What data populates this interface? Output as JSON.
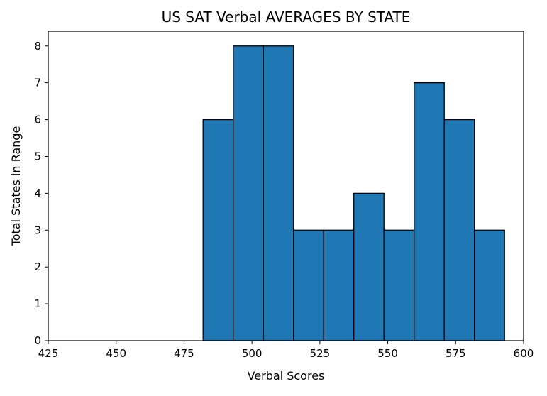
{
  "chart_data": {
    "type": "bar",
    "subtype": "histogram",
    "title": "US SAT Verbal AVERAGES BY STATE",
    "xlabel": "Verbal Scores",
    "ylabel": "Total States in Range",
    "xlim": [
      425,
      600
    ],
    "ylim": [
      0,
      8.4
    ],
    "xticks": [
      "425",
      "450",
      "475",
      "500",
      "525",
      "550",
      "575",
      "600"
    ],
    "yticks": [
      "0",
      "1",
      "2",
      "3",
      "4",
      "5",
      "6",
      "7",
      "8"
    ],
    "bin_edges": [
      482,
      493.1,
      504.2,
      515.3,
      526.4,
      537.5,
      548.6,
      559.7,
      570.8,
      581.9,
      593
    ],
    "values": [
      6,
      8,
      8,
      3,
      3,
      4,
      3,
      7,
      6,
      3
    ],
    "grid": false,
    "legend": "none",
    "colors": {
      "bar_fill": "#1f77b4",
      "bar_edge": "#000000",
      "axis": "#000000",
      "background": "#ffffff"
    }
  }
}
